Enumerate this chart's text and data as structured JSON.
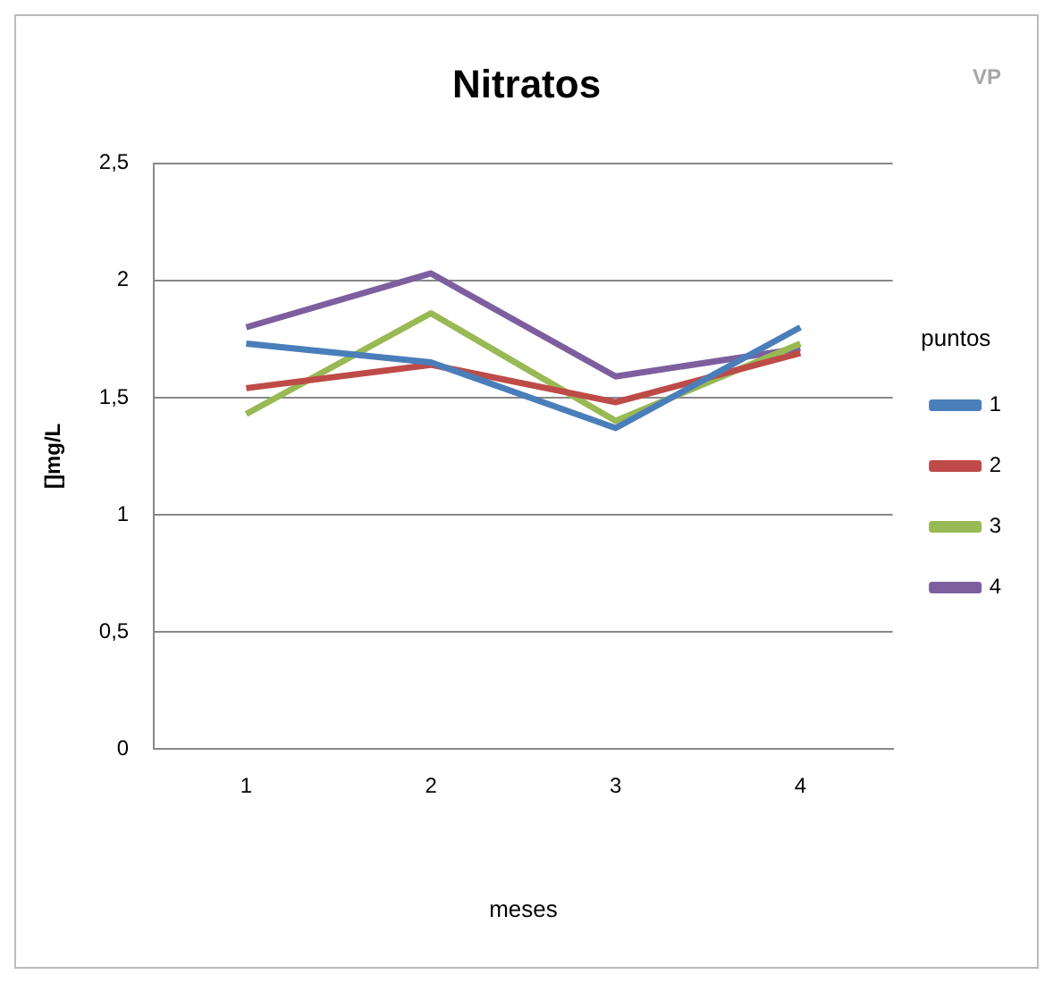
{
  "chart_data": {
    "type": "line",
    "title": "Nitratos",
    "xlabel": "meses",
    "ylabel": "[]mg/L",
    "legend_title": "puntos",
    "annotations": [
      "VP"
    ],
    "categories": [
      "1",
      "2",
      "3",
      "4"
    ],
    "series": [
      {
        "name": "1",
        "color": "#4a7ebb",
        "values": [
          1.73,
          1.65,
          1.37,
          1.8
        ]
      },
      {
        "name": "2",
        "color": "#be4b48",
        "values": [
          1.54,
          1.64,
          1.48,
          1.69
        ]
      },
      {
        "name": "3",
        "color": "#98b954",
        "values": [
          1.43,
          1.86,
          1.4,
          1.73
        ]
      },
      {
        "name": "4",
        "color": "#7d5fa0",
        "values": [
          1.8,
          2.03,
          1.59,
          1.71
        ]
      }
    ],
    "ylim": [
      0,
      2.5
    ],
    "yticks": [
      0,
      {
        "value": 0.5,
        "label": "0,5"
      },
      1,
      {
        "value": 1.5,
        "label": "1,5"
      },
      2,
      {
        "value": 2.5,
        "label": "2,5"
      }
    ],
    "grid": "y",
    "legend": "right",
    "marker": "none",
    "line_style": "solid"
  }
}
